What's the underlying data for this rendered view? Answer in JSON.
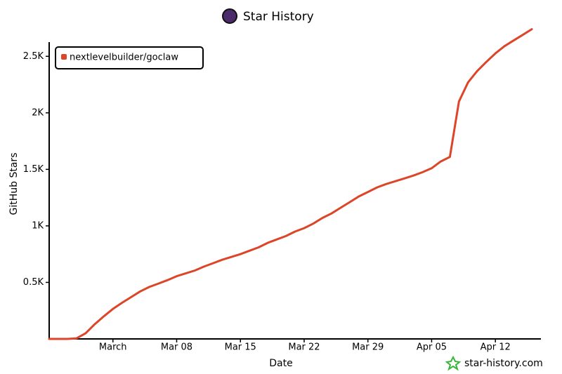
{
  "chart_data": {
    "type": "line",
    "title": "Star History",
    "x_label": "Date",
    "y_label": "GitHub Stars",
    "watermark": "star-history.com",
    "x": [
      "Feb 22",
      "Feb 23",
      "Feb 24",
      "Feb 25",
      "Feb 26",
      "Feb 27",
      "Feb 28",
      "Mar 01",
      "Mar 02",
      "Mar 03",
      "Mar 04",
      "Mar 05",
      "Mar 06",
      "Mar 07",
      "Mar 08",
      "Mar 09",
      "Mar 10",
      "Mar 11",
      "Mar 12",
      "Mar 13",
      "Mar 14",
      "Mar 15",
      "Mar 16",
      "Mar 17",
      "Mar 18",
      "Mar 19",
      "Mar 20",
      "Mar 21",
      "Mar 22",
      "Mar 23",
      "Mar 24",
      "Mar 25",
      "Mar 26",
      "Mar 27",
      "Mar 28",
      "Mar 29",
      "Mar 30",
      "Mar 31",
      "Apr 01",
      "Apr 02",
      "Apr 03",
      "Apr 04",
      "Apr 05",
      "Apr 06",
      "Apr 07",
      "Apr 08",
      "Apr 09",
      "Apr 10",
      "Apr 11",
      "Apr 12",
      "Apr 13",
      "Apr 14",
      "Apr 15",
      "Apr 16"
    ],
    "series": [
      {
        "name": "nextlevelbuilder/goclaw",
        "color": "#dd4528",
        "values": [
          0,
          0,
          0,
          5,
          50,
          130,
          200,
          265,
          320,
          370,
          420,
          460,
          490,
          520,
          555,
          580,
          605,
          640,
          670,
          700,
          725,
          750,
          780,
          810,
          850,
          880,
          910,
          950,
          980,
          1020,
          1070,
          1110,
          1160,
          1210,
          1260,
          1300,
          1340,
          1370,
          1395,
          1420,
          1445,
          1475,
          1510,
          1570,
          1610,
          2100,
          2270,
          2370,
          2450,
          2526,
          2590,
          2640,
          2690,
          2740
        ]
      }
    ],
    "xlim": [
      "Feb 22",
      "Apr 17"
    ],
    "xticks": [
      {
        "value": "Mar 01",
        "label": "March"
      },
      "Mar 08",
      "Mar 15",
      "Mar 22",
      "Mar 29",
      "Apr 05",
      "Apr 12"
    ],
    "ylim": [
      0,
      2750
    ],
    "yticks": [
      {
        "value": 500,
        "label": "0.5K"
      },
      {
        "value": 1000,
        "label": "1K"
      },
      {
        "value": 1500,
        "label": "1.5K"
      },
      {
        "value": 2000,
        "label": "2K"
      },
      {
        "value": 2500,
        "label": "2.5K"
      }
    ],
    "legend": "top-left"
  }
}
